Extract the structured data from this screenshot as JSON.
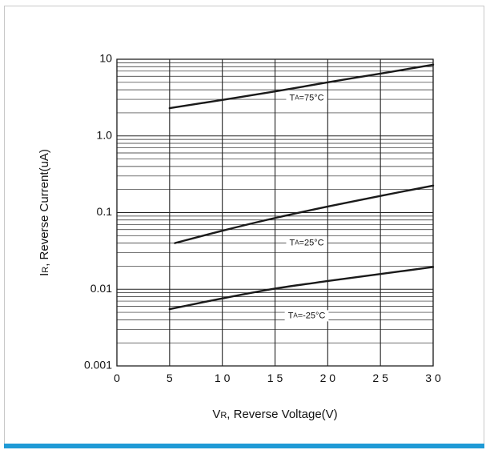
{
  "chart_data": {
    "type": "line",
    "x_scale": "linear",
    "y_scale": "log",
    "xlim": [
      0,
      30
    ],
    "ylim": [
      0.001,
      10
    ],
    "grid": true,
    "xlabel": {
      "main": "V",
      "sub": "R",
      "rest": ", Reverse Voltage(V)"
    },
    "ylabel": {
      "main": "I",
      "sub": "R",
      "rest": ", Reverse Current(uA)"
    },
    "x_ticks": [
      {
        "value": 0,
        "label": "0"
      },
      {
        "value": 5,
        "label": "5"
      },
      {
        "value": 10,
        "label": "1 0"
      },
      {
        "value": 15,
        "label": "1 5"
      },
      {
        "value": 20,
        "label": "2 0"
      },
      {
        "value": 25,
        "label": "2 5"
      },
      {
        "value": 30,
        "label": "3 0"
      }
    ],
    "y_ticks": [
      {
        "value": 10,
        "label": "10"
      },
      {
        "value": 1,
        "label": "1.0"
      },
      {
        "value": 0.1,
        "label": "0.1"
      },
      {
        "value": 0.01,
        "label": "0.01"
      },
      {
        "value": 0.001,
        "label": "0.001"
      }
    ],
    "series": [
      {
        "name": "TA=75°C",
        "label": {
          "pre": "T",
          "sub": "A",
          "post": "=75°C"
        },
        "label_anchor": {
          "x": 18,
          "y": 3.1
        },
        "x": [
          5,
          10,
          15,
          20,
          25,
          30
        ],
        "y": [
          2.3,
          2.95,
          3.8,
          5.0,
          6.5,
          8.5
        ]
      },
      {
        "name": "TA=25°C",
        "label": {
          "pre": "T",
          "sub": "A",
          "post": "=25°C"
        },
        "label_anchor": {
          "x": 18,
          "y": 0.04
        },
        "x": [
          5.5,
          10,
          15,
          20,
          25,
          30
        ],
        "y": [
          0.04,
          0.058,
          0.085,
          0.12,
          0.165,
          0.225
        ]
      },
      {
        "name": "TA=-25°C",
        "label": {
          "pre": "T",
          "sub": "A",
          "post": "=-25°C"
        },
        "label_anchor": {
          "x": 18,
          "y": 0.0045
        },
        "x": [
          5,
          10,
          15,
          20,
          25,
          30
        ],
        "y": [
          0.0055,
          0.0076,
          0.0102,
          0.0128,
          0.0158,
          0.0195
        ]
      }
    ]
  },
  "colors": {
    "line": "#1a1a1a",
    "grid": "#222222",
    "frame_border": "#c8c8c8",
    "accent_bar": "#1f9ad6"
  }
}
